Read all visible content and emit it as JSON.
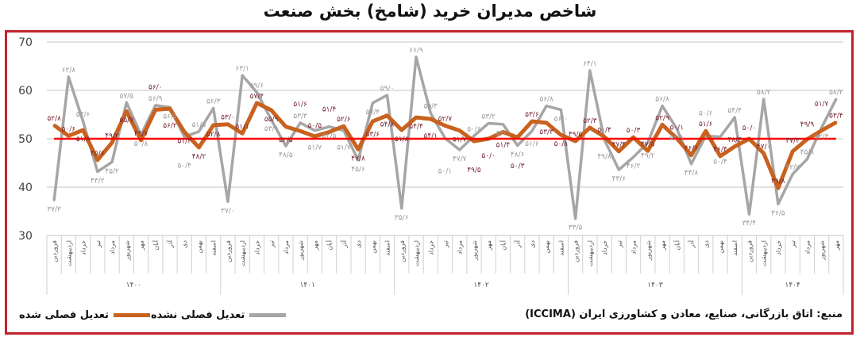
{
  "title": "شاخص مدیران خرید (شامخ) بخش صنعت",
  "source": "منبع: اتاق بازرگانی، صنایع، معادن و کشاورزی ایران (ICCIMA)",
  "colors": {
    "adjusted": "#c8621e",
    "unadjusted": "#a6a6a6",
    "threshold": "#ff0000",
    "frame": "#c0232c",
    "adjusted_label": "#7a2636",
    "unadjusted_label": "#9a9a9a"
  },
  "chart_data": {
    "type": "line",
    "ylim": [
      30,
      70
    ],
    "yticks": [
      "70",
      "60",
      "50",
      "40",
      "30"
    ],
    "threshold": 50,
    "grid": true,
    "legend_position": "bottom-left",
    "months": [
      "فروردین",
      "اردیبهشت",
      "خرداد",
      "تیر",
      "مرداد",
      "شهریور",
      "مهر",
      "آبان",
      "آذر",
      "دی",
      "بهمن",
      "اسفند"
    ],
    "years": [
      {
        "label": "۱۴۰۰",
        "months": 12
      },
      {
        "label": "۱۴۰۱",
        "months": 12
      },
      {
        "label": "۱۴۰۲",
        "months": 12
      },
      {
        "label": "۱۴۰۳",
        "months": 12
      },
      {
        "label": "۱۴۰۴",
        "months": 7
      }
    ],
    "series": [
      {
        "name": "تعدیل فصلی شده",
        "key": "adjusted",
        "values": [
          52.8,
          50.6,
          51.8,
          45.6,
          49.2,
          55.7,
          49.7,
          56.0,
          56.2,
          51.4,
          48.2,
          52.8,
          53.0,
          51.1,
          57.4,
          55.9,
          52.5,
          51.6,
          50.5,
          51.4,
          52.6,
          47.8,
          53.6,
          54.8,
          51.8,
          54.4,
          54.1,
          52.7,
          51.7,
          49.5,
          50.0,
          51.4,
          50.3,
          53.6,
          53.3,
          50.8,
          49.5,
          52.3,
          50.4,
          47.4,
          50.3,
          47.5,
          52.9,
          50.1,
          46.6,
          51.6,
          46.4,
          48.4,
          50.0,
          47.0,
          39.8,
          47.4,
          49.9,
          51.7,
          53.4
        ]
      },
      {
        "name": "تعدیل فصلی نشده",
        "key": "unadjusted",
        "values": [
          37.3,
          62.8,
          53.6,
          43.2,
          45.2,
          57.5,
          50.8,
          56.9,
          56.5,
          50.4,
          51.5,
          56.3,
          37.0,
          63.1,
          59.6,
          53.9,
          48.5,
          53.3,
          51.7,
          52.5,
          51.7,
          45.6,
          57.4,
          59.0,
          35.6,
          66.9,
          55.3,
          50.1,
          47.7,
          50.6,
          53.2,
          53.0,
          48.6,
          51.6,
          56.8,
          56.0,
          33.5,
          64.1,
          49.8,
          43.6,
          46.2,
          49.2,
          56.8,
          52.1,
          44.8,
          50.6,
          50.4,
          54.4,
          34.4,
          58.2,
          36.5,
          42.7,
          45.8,
          52.3,
          58.2
        ]
      }
    ]
  }
}
